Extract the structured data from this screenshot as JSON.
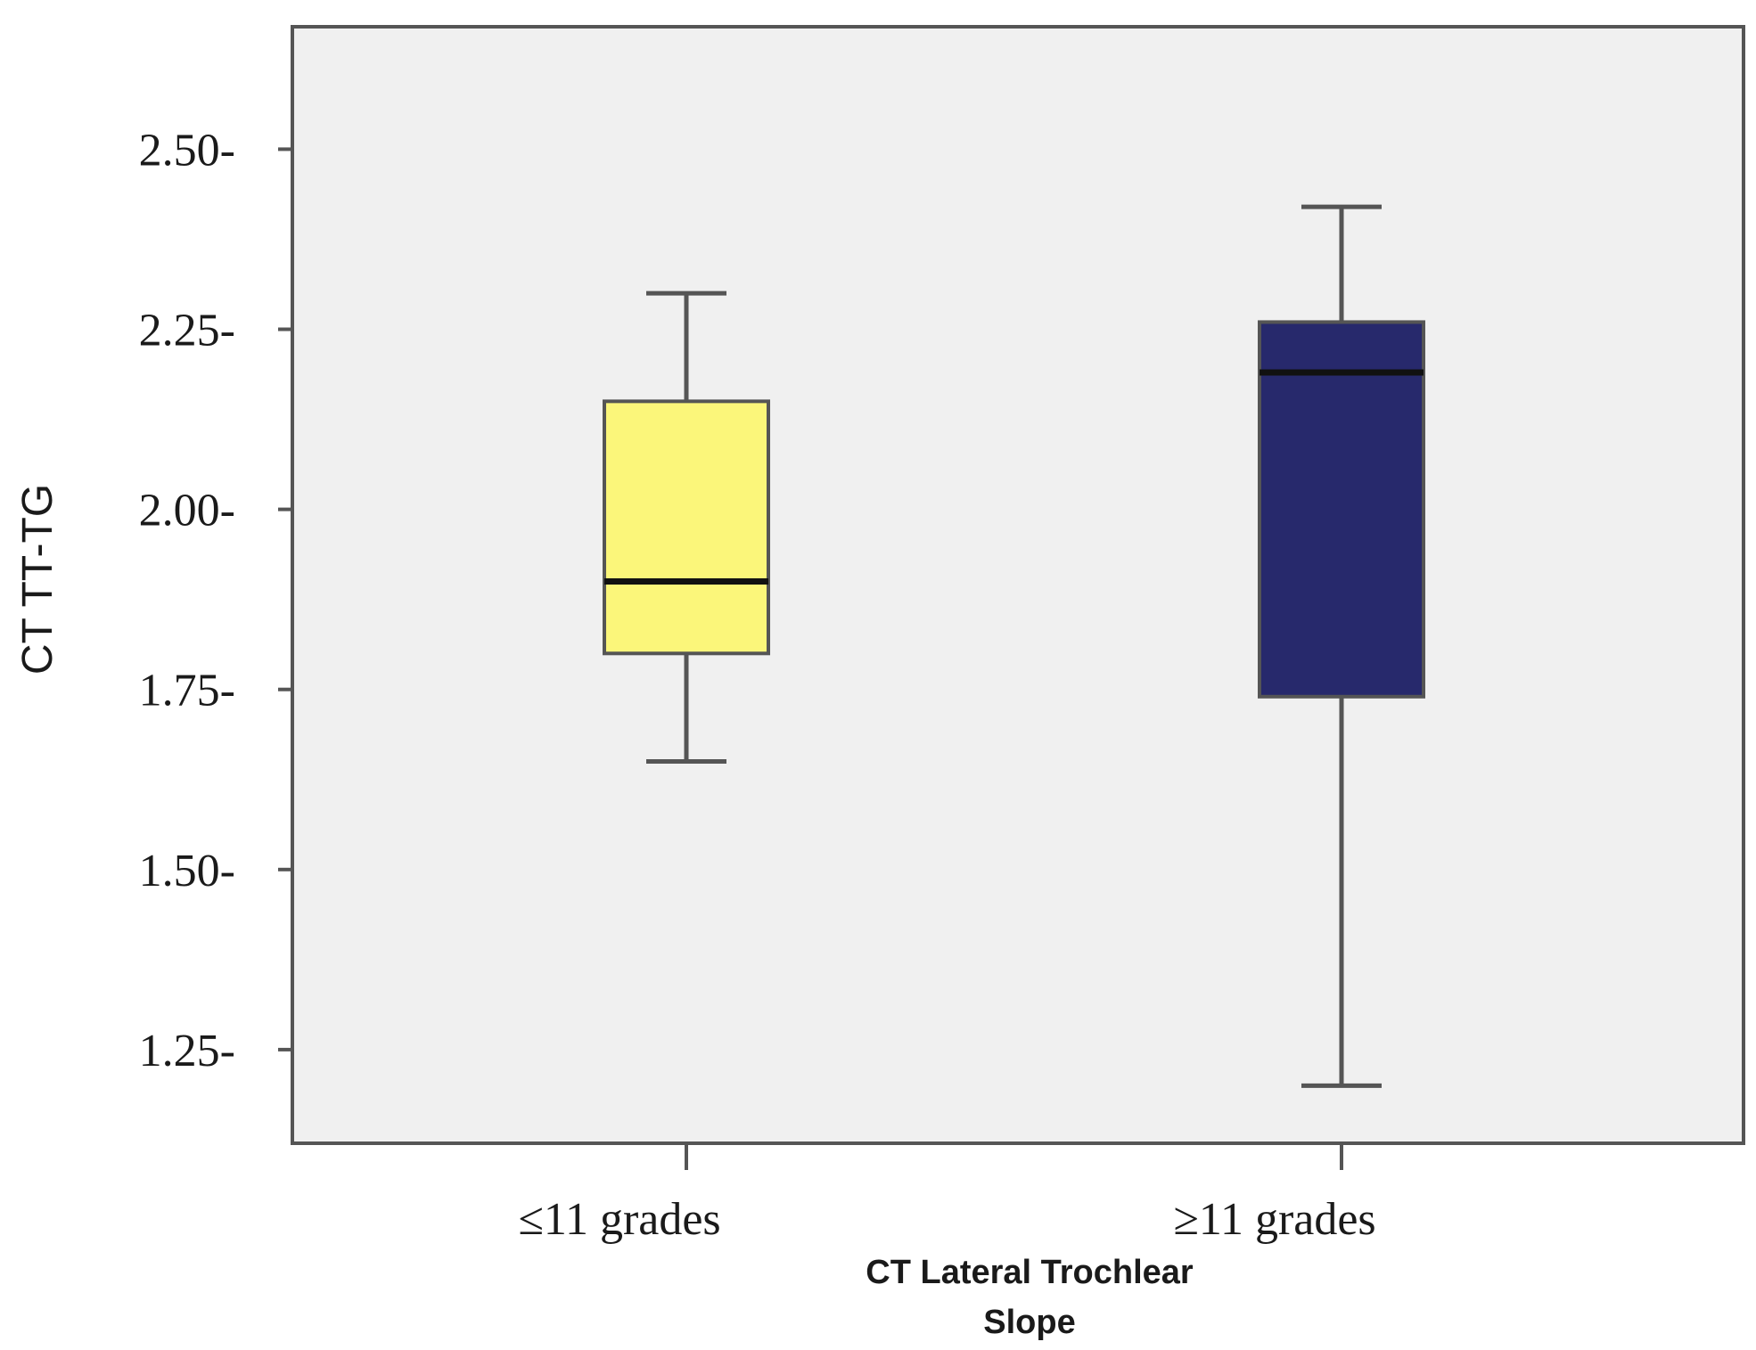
{
  "chart_data": {
    "type": "box",
    "title": "",
    "ylabel": "CT TT-TG",
    "xlabel_lines": [
      "CT Lateral Trochlear",
      "Slope"
    ],
    "ylim": [
      1.12,
      2.67
    ],
    "yticks": [
      2.5,
      2.25,
      2.0,
      1.75,
      1.5,
      1.25
    ],
    "ytick_labels": [
      "2.50-",
      "2.25-",
      "2.00-",
      "1.75-",
      "1.50-",
      "1.25-"
    ],
    "grid": false,
    "categories": [
      "≤11 grades",
      "≥11 grades"
    ],
    "boxes": [
      {
        "category": "≤11 grades",
        "whisker_low": 1.65,
        "q1": 1.8,
        "median": 1.9,
        "q3": 2.15,
        "whisker_high": 2.3,
        "color": "#fbf67a"
      },
      {
        "category": "≥11 grades",
        "whisker_low": 1.2,
        "q1": 1.74,
        "median": 2.19,
        "q3": 2.26,
        "whisker_high": 2.42,
        "color": "#27296c"
      }
    ],
    "colors": {
      "plot_background": "#f0f0f0",
      "frame": "#555555",
      "whisker": "#555555",
      "median": "#111111"
    }
  }
}
